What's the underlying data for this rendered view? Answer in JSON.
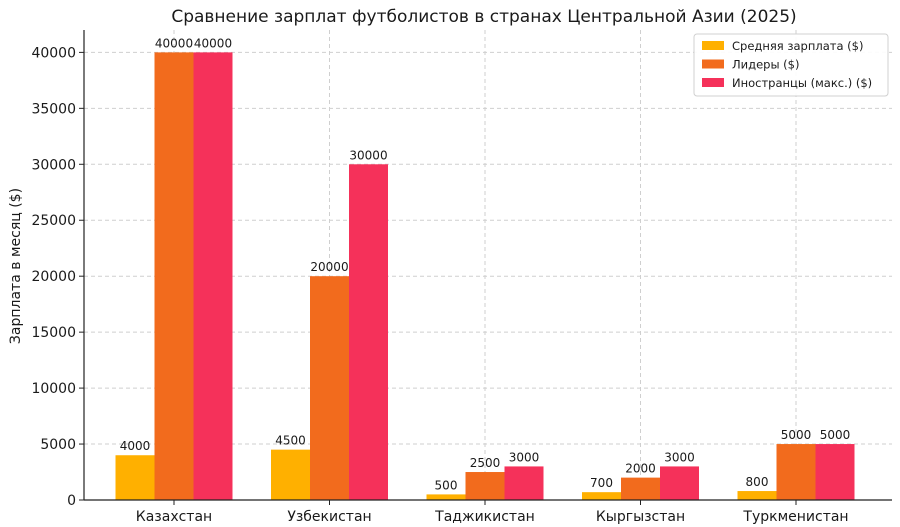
{
  "chart_data": {
    "type": "bar",
    "title": "Сравнение зарплат футболистов в странах Центральной Азии (2025)",
    "xlabel": "",
    "ylabel": "Зарплата в месяц ($)",
    "categories": [
      "Казахстан",
      "Узбекистан",
      "Таджикистан",
      "Кыргызстан",
      "Туркменистан"
    ],
    "series": [
      {
        "name": "Средняя зарплата ($)",
        "color": "#FFB000",
        "values": [
          4000,
          4500,
          500,
          700,
          800
        ]
      },
      {
        "name": "Лидеры ($)",
        "color": "#F26B1D",
        "values": [
          40000,
          20000,
          2500,
          2000,
          5000
        ]
      },
      {
        "name": "Иностранцы (макс.) ($)",
        "color": "#F5315A",
        "values": [
          40000,
          30000,
          3000,
          3000,
          5000
        ]
      }
    ],
    "ylim": [
      0,
      42000
    ],
    "yticks": [
      0,
      5000,
      10000,
      15000,
      20000,
      25000,
      30000,
      35000,
      40000
    ],
    "grid": true,
    "legend_position": "top-right"
  }
}
